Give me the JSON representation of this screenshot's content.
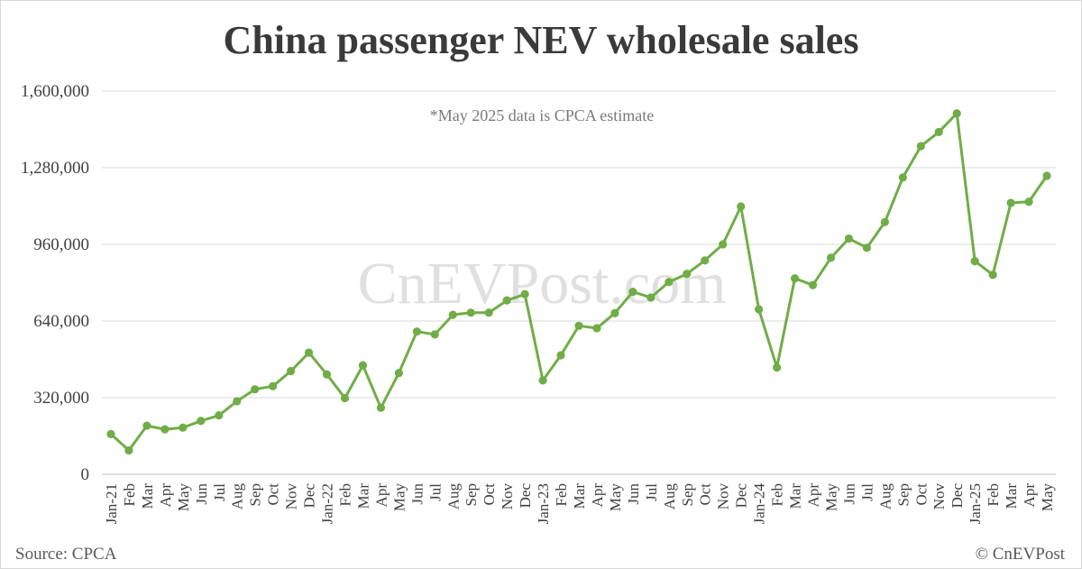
{
  "chart_data": {
    "type": "line",
    "title": "China passenger NEV wholesale sales",
    "annotation": "*May 2025 data is CPCA estimate",
    "watermark": "CnEVPost.com",
    "source": "Source: CPCA",
    "credit": "© CnEVPost",
    "ylim": [
      0,
      1600000
    ],
    "yticks": [
      0,
      320000,
      640000,
      960000,
      1280000,
      1600000
    ],
    "ytick_labels": [
      "0",
      "320,000",
      "640,000",
      "960,000",
      "1,280,000",
      "1,600,000"
    ],
    "grid": true,
    "legend": "none",
    "line_color": "#70ad47",
    "categories": [
      "Jan-21",
      "Feb",
      "Mar",
      "Apr",
      "May",
      "Jun",
      "Jul",
      "Aug",
      "Sep",
      "Oct",
      "Nov",
      "Dec",
      "Jan-22",
      "Feb",
      "Mar",
      "Apr",
      "May",
      "Jun",
      "Jul",
      "Aug",
      "Sep",
      "Oct",
      "Nov",
      "Dec",
      "Jan-23",
      "Feb",
      "Mar",
      "Apr",
      "May",
      "Jun",
      "Jul",
      "Aug",
      "Sep",
      "Oct",
      "Nov",
      "Dec",
      "Jan-24",
      "Feb",
      "Mar",
      "Apr",
      "May",
      "Jun",
      "Jul",
      "Aug",
      "Sep",
      "Oct",
      "Nov",
      "Dec",
      "Jan-25",
      "Feb",
      "Mar",
      "Apr",
      "May"
    ],
    "series": [
      {
        "values": [
          168000,
          100000,
          203000,
          188000,
          195000,
          223000,
          246000,
          305000,
          355000,
          368000,
          431000,
          508000,
          417000,
          318000,
          455000,
          278000,
          423000,
          596000,
          584000,
          666000,
          675000,
          675000,
          726000,
          752000,
          392000,
          497000,
          620000,
          610000,
          673000,
          762000,
          738000,
          803000,
          837000,
          893000,
          960000,
          1118000,
          689000,
          446000,
          818000,
          790000,
          904000,
          984000,
          946000,
          1053000,
          1239000,
          1370000,
          1429000,
          1507000,
          890000,
          833000,
          1133000,
          1138000,
          1246000
        ]
      }
    ]
  }
}
